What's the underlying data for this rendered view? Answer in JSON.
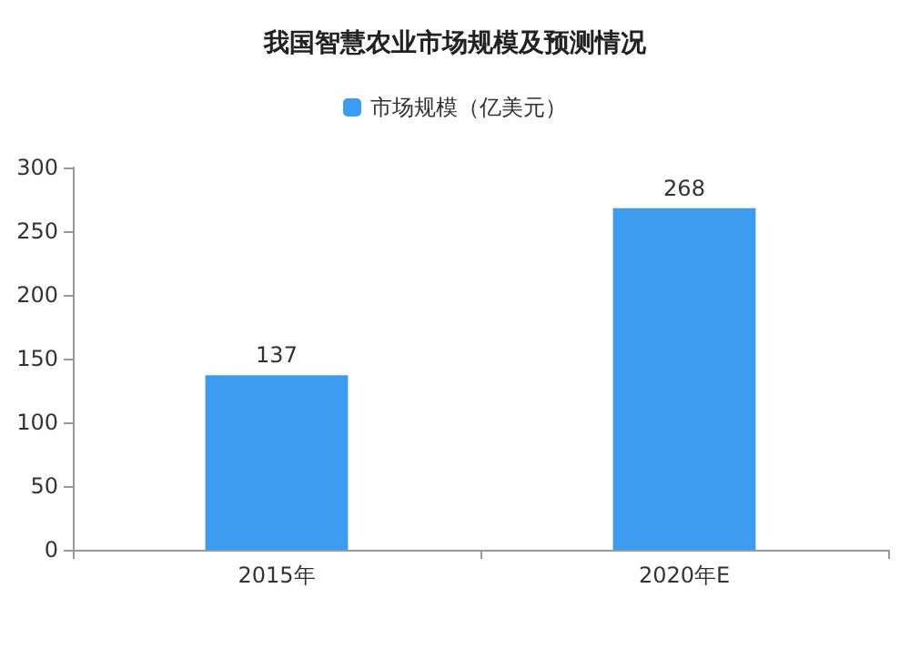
{
  "chart_data": {
    "type": "bar",
    "title": "我国智慧农业市场规模及预测情况",
    "categories": [
      "2015年",
      "2020年E"
    ],
    "series": [
      {
        "name": "市场规模（亿美元）",
        "color": "#3d9cf0",
        "values": [
          137,
          268
        ]
      }
    ],
    "ylim": [
      0,
      300
    ],
    "yticks": [
      0,
      50,
      100,
      150,
      200,
      250,
      300
    ],
    "grid": false,
    "legend": "top",
    "data_labels": true
  }
}
